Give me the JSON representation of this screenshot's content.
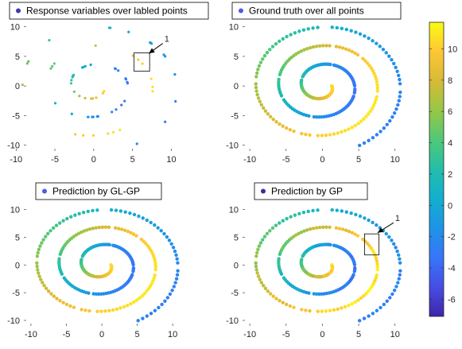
{
  "chart_data": {
    "type": "scatter",
    "colormap": "parula",
    "colorbar": {
      "ticks": [
        10,
        8,
        6,
        4,
        2,
        0,
        -2,
        -4,
        -6
      ],
      "range": [
        -7.1,
        11.7
      ]
    },
    "panels": [
      {
        "legend": "Response variables over labled points",
        "legend_color": "#3c3bb2",
        "xlim": [
          -9,
          12
        ],
        "ylim": [
          -11,
          10.5
        ],
        "xticks": [
          -10,
          -5,
          0,
          5,
          10
        ],
        "yticks": [
          -10,
          -5,
          0,
          5,
          10
        ],
        "box": {
          "x": [
            5.2,
            7.2
          ],
          "y": [
            2.5,
            5.6
          ]
        },
        "annotation": {
          "text": "1",
          "from": [
            8.9,
            7.2
          ],
          "to": [
            7.1,
            5.5
          ]
        },
        "data": "sampled-spiral-points"
      },
      {
        "legend": "Ground truth over all points",
        "legend_color": "#4a5ce0",
        "xlim": [
          -11,
          12
        ],
        "ylim": [
          -11,
          10.5
        ],
        "xticks": [
          -10,
          -5,
          0,
          5,
          10
        ],
        "yticks": [
          -10,
          -5,
          0,
          5,
          10
        ],
        "data": "spiral"
      },
      {
        "legend": "Prediction by GL-GP",
        "legend_color": "#4760e0",
        "xlim": [
          -11,
          12
        ],
        "ylim": [
          -11,
          10.5
        ],
        "xticks": [
          -10,
          -5,
          0,
          5,
          10
        ],
        "yticks": [
          -10,
          -5,
          0,
          5,
          10
        ],
        "data": "spiral"
      },
      {
        "legend": "Prediction by GP",
        "legend_color": "#3a2e9a",
        "xlim": [
          -11,
          12
        ],
        "ylim": [
          -11,
          10.5
        ],
        "xticks": [
          -10,
          -5,
          0,
          5,
          10
        ],
        "yticks": [
          -10,
          -5,
          0,
          5,
          10
        ],
        "box": {
          "x": [
            5.8,
            7.8
          ],
          "y": [
            1.8,
            5.6
          ]
        },
        "annotation": {
          "text": "1",
          "from": [
            9.8,
            7.6
          ],
          "to": [
            7.6,
            5.8
          ]
        },
        "data": "spiral"
      }
    ]
  }
}
